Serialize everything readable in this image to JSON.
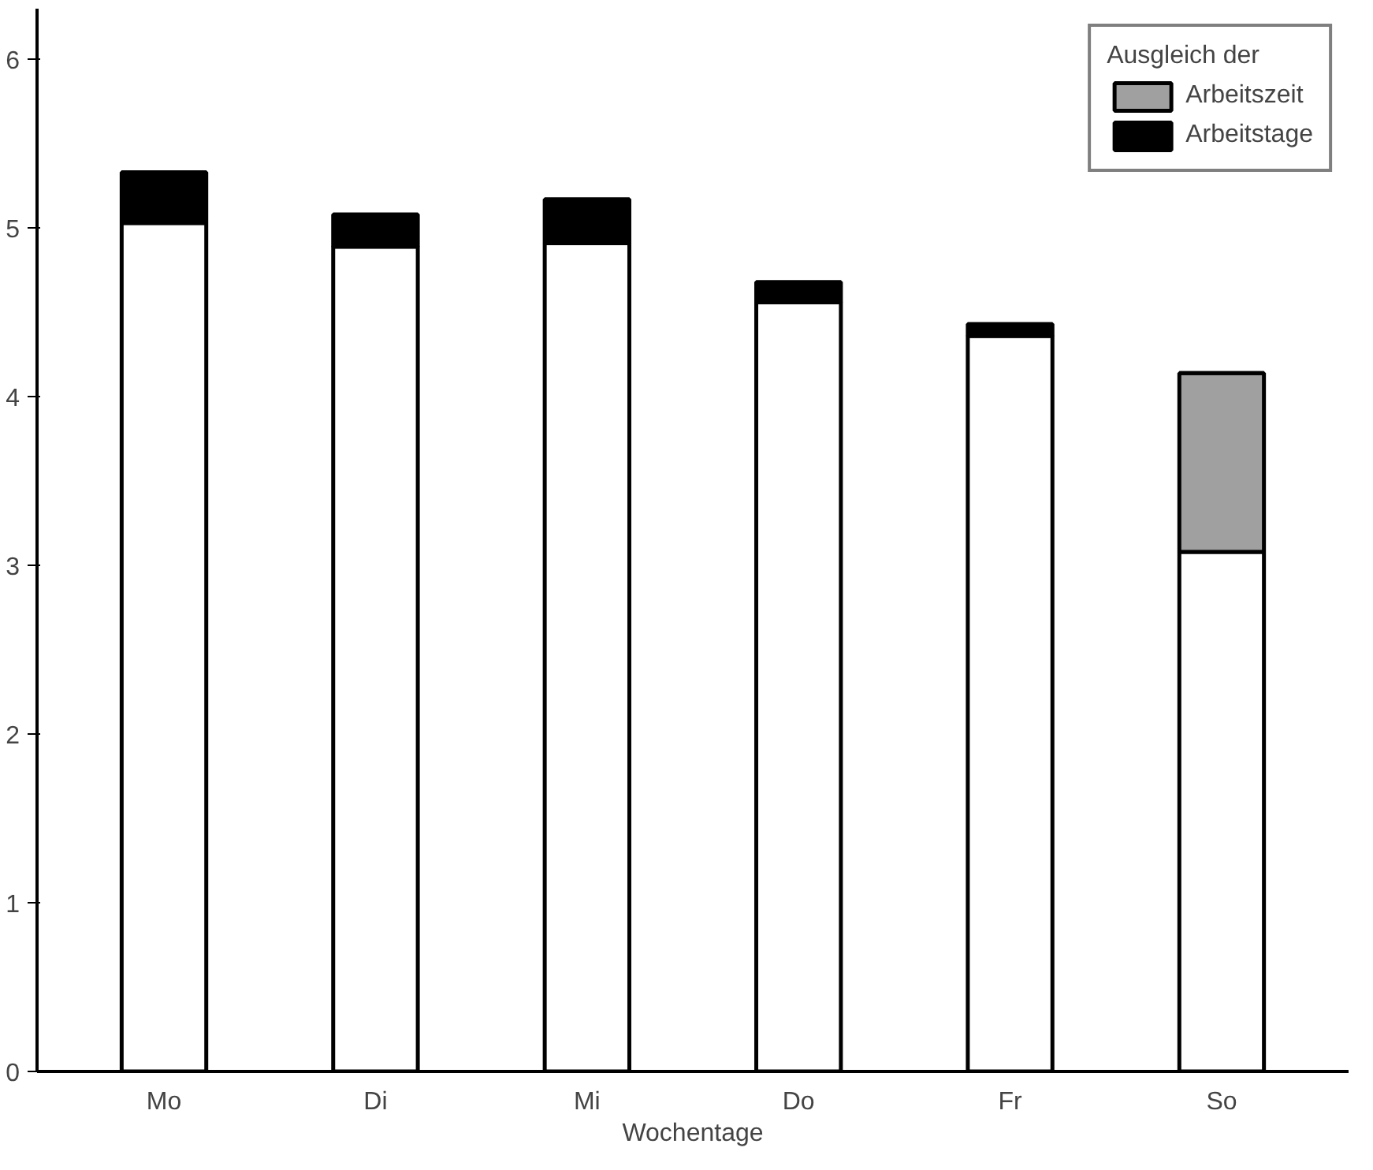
{
  "chart_data": {
    "type": "bar",
    "stacked": true,
    "categories": [
      "Mo",
      "Di",
      "Mi",
      "Do",
      "Fr",
      "So"
    ],
    "xlabel": "Wochentage",
    "legend_title": "Ausgleich der",
    "legend": "top right",
    "grid": false,
    "ylim": [
      0,
      6.3
    ],
    "yticks": [
      0,
      1,
      2,
      3,
      4,
      5,
      6
    ],
    "series": [
      {
        "color": "#ffffff",
        "values": [
          5.03,
          4.89,
          4.91,
          4.56,
          4.36,
          3.08
        ]
      },
      {
        "name": "Arbeitszeit",
        "color": "#a0a0a0",
        "values": [
          0,
          0,
          0,
          0,
          0,
          1.06
        ]
      },
      {
        "name": "Arbeitstage",
        "color": "#000000",
        "values": [
          0.3,
          0.19,
          0.26,
          0.12,
          0.07,
          0
        ]
      }
    ]
  }
}
